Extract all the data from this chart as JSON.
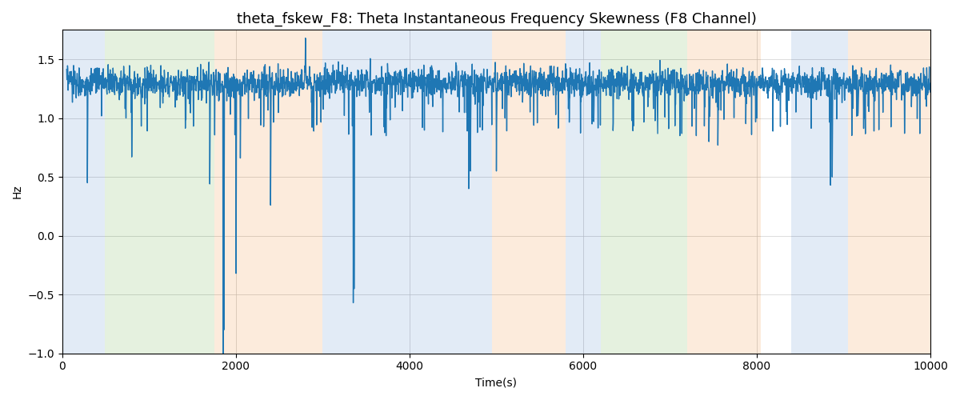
{
  "title": "theta_fskew_F8: Theta Instantaneous Frequency Skewness (F8 Channel)",
  "xlabel": "Time(s)",
  "ylabel": "Hz",
  "xlim": [
    0,
    10000
  ],
  "ylim": [
    -1.0,
    1.75
  ],
  "background_regions": [
    {
      "xstart": 0,
      "xend": 490,
      "color": "#aec6e8"
    },
    {
      "xstart": 490,
      "xend": 1750,
      "color": "#b5d9a5"
    },
    {
      "xstart": 1750,
      "xend": 3000,
      "color": "#f9c89b"
    },
    {
      "xstart": 3000,
      "xend": 3450,
      "color": "#aec6e8"
    },
    {
      "xstart": 3450,
      "xend": 4950,
      "color": "#aec6e8"
    },
    {
      "xstart": 4950,
      "xend": 5800,
      "color": "#f9c89b"
    },
    {
      "xstart": 5800,
      "xend": 6200,
      "color": "#aec6e8"
    },
    {
      "xstart": 6200,
      "xend": 7200,
      "color": "#b5d9a5"
    },
    {
      "xstart": 7200,
      "xend": 8050,
      "color": "#f9c89b"
    },
    {
      "xstart": 8050,
      "xend": 8400,
      "color": "#ffffff"
    },
    {
      "xstart": 8400,
      "xend": 9050,
      "color": "#aec6e8"
    },
    {
      "xstart": 9050,
      "xend": 10000,
      "color": "#f9c89b"
    }
  ],
  "line_color": "#1f77b4",
  "line_width": 1.0,
  "grid_color": "#b0b0b0",
  "title_fontsize": 13,
  "yticks": [
    -1.0,
    -0.5,
    0.0,
    0.5,
    1.0,
    1.5
  ],
  "xticks": [
    0,
    2000,
    4000,
    6000,
    8000,
    10000
  ],
  "region_alpha": 0.35
}
